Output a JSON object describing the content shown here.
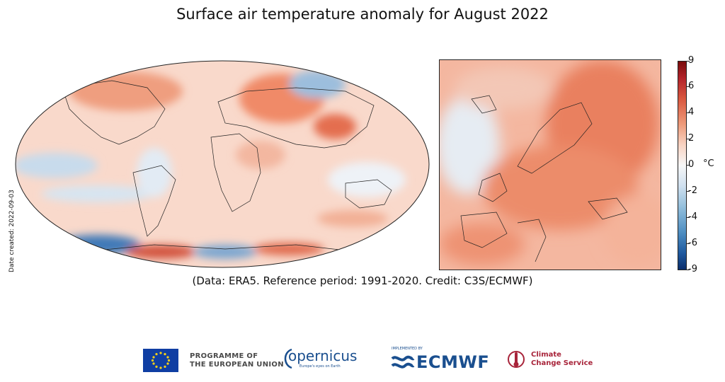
{
  "title": "Surface air temperature anomaly for August 2022",
  "date_created": "Date created: 2022-09-03",
  "caption": "(Data: ERA5.  Reference period: 1991-2020.  Credit: C3S/ECMWF)",
  "colorbar": {
    "unit": "°C",
    "ticks": [
      "9",
      "6",
      "4",
      "2",
      "0",
      "-2",
      "-4",
      "-6",
      "-9"
    ],
    "colors": {
      "max": "#7a0b0b",
      "warm": "#d9583f",
      "neutral": "#f7f7f7",
      "cool": "#4f8fc2",
      "min": "#0b2e6b"
    }
  },
  "panels": [
    {
      "name": "world",
      "projection": "robinson"
    },
    {
      "name": "europe",
      "projection": "regional"
    }
  ],
  "logos": {
    "eu": {
      "line1": "PROGRAMME OF",
      "line2": "THE EUROPEAN UNION"
    },
    "copernicus": {
      "name": "opernicus",
      "tagline": "Europe's eyes on Earth"
    },
    "ecmwf": {
      "implemented_by": "IMPLEMENTED BY",
      "name": "ECMWF"
    },
    "ccs": {
      "line1": "Climate",
      "line2": "Change Service"
    }
  }
}
